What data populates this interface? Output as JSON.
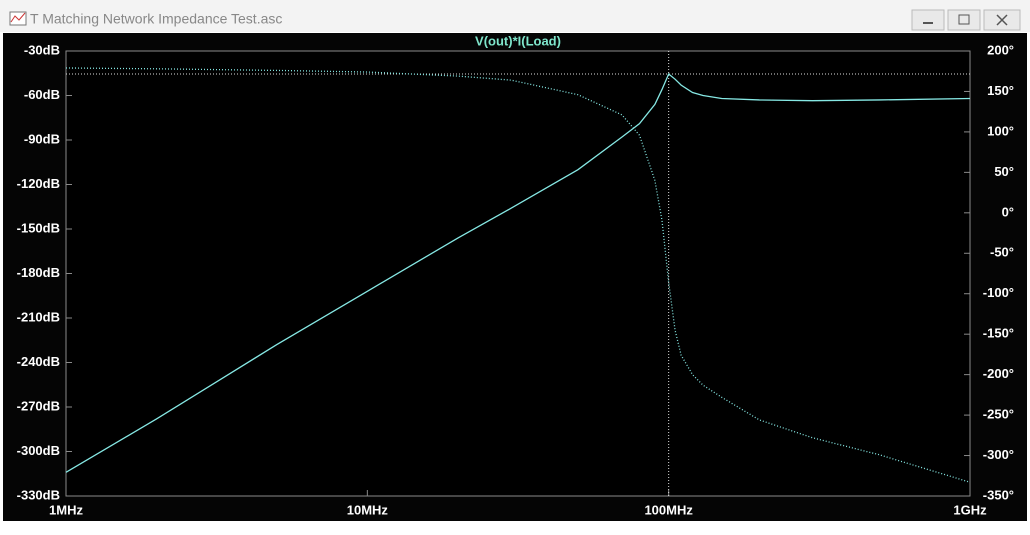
{
  "window": {
    "title": "T Matching Network Impedance Test.asc"
  },
  "chart_data": {
    "type": "line",
    "title": "V(out)*I(Load)",
    "xscale": "log",
    "x": [
      1000000,
      2000000,
      5000000,
      10000000,
      20000000,
      30000000,
      50000000,
      70000000,
      80000000,
      90000000,
      95000000,
      100000000,
      105000000,
      110000000,
      120000000,
      130000000,
      150000000,
      200000000,
      300000000,
      500000000,
      1000000000
    ],
    "series": [
      {
        "name": "V(out)*I(Load) magnitude",
        "color": "#86e8e4",
        "style": "solid",
        "values": [
          -314,
          -278,
          -228,
          -192,
          -156,
          -136,
          -110,
          -88,
          -79,
          -66,
          -56,
          -45.5,
          -49,
          -53,
          -58,
          -60,
          -62,
          -63,
          -63.5,
          -63,
          -62
        ]
      },
      {
        "name": "V(out)*I(Load) phase",
        "color": "#86e8e4",
        "style": "dotted",
        "axis": "y2",
        "values": [
          179,
          178,
          176,
          174,
          169,
          164,
          146,
          121,
          96,
          40,
          -9,
          -86,
          -145,
          -176,
          -200,
          -213,
          -228,
          -256,
          -278,
          -299,
          -333
        ]
      }
    ],
    "xlim": [
      1000000,
      1000000000
    ],
    "xticks": [
      {
        "value": 1000000,
        "label": "1MHz"
      },
      {
        "value": 10000000,
        "label": "10MHz"
      },
      {
        "value": 100000000,
        "label": "100MHz"
      },
      {
        "value": 1000000000,
        "label": "1GHz"
      }
    ],
    "ylim": [
      -330,
      -30
    ],
    "yticks": [
      {
        "value": -30,
        "label": "-30dB"
      },
      {
        "value": -60,
        "label": "-60dB"
      },
      {
        "value": -90,
        "label": "-90dB"
      },
      {
        "value": -120,
        "label": "-120dB"
      },
      {
        "value": -150,
        "label": "-150dB"
      },
      {
        "value": -180,
        "label": "-180dB"
      },
      {
        "value": -210,
        "label": "-210dB"
      },
      {
        "value": -240,
        "label": "-240dB"
      },
      {
        "value": -270,
        "label": "-270dB"
      },
      {
        "value": -300,
        "label": "-300dB"
      },
      {
        "value": -330,
        "label": "-330dB"
      }
    ],
    "y2lim": [
      -350,
      200
    ],
    "y2ticks": [
      {
        "value": 200,
        "label": "200°"
      },
      {
        "value": 150,
        "label": "150°"
      },
      {
        "value": 100,
        "label": "100°"
      },
      {
        "value": 50,
        "label": "50°"
      },
      {
        "value": 0,
        "label": "0°"
      },
      {
        "value": -50,
        "label": "-50°"
      },
      {
        "value": -100,
        "label": "-100°"
      },
      {
        "value": -150,
        "label": "-150°"
      },
      {
        "value": -200,
        "label": "-200°"
      },
      {
        "value": -250,
        "label": "-250°"
      },
      {
        "value": -300,
        "label": "-300°"
      },
      {
        "value": -350,
        "label": "-350°"
      }
    ],
    "grid": false,
    "title_color": "#7fe6cc"
  }
}
